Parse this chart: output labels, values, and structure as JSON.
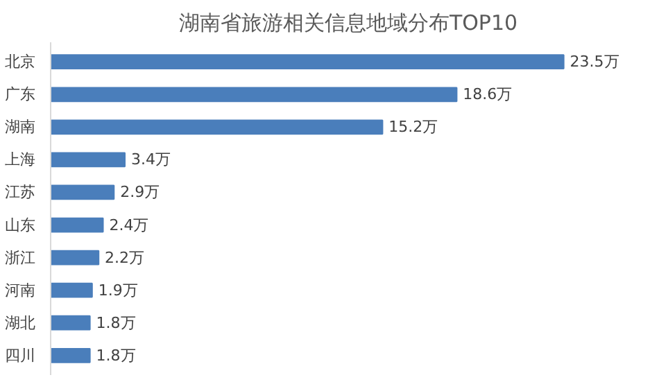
{
  "chart_data": {
    "type": "bar",
    "orientation": "horizontal",
    "title": "湖南省旅游相关信息地域分布TOP10",
    "categories": [
      "北京",
      "广东",
      "湖南",
      "上海",
      "江苏",
      "山东",
      "浙江",
      "河南",
      "湖北",
      "四川"
    ],
    "values": [
      23.5,
      18.6,
      15.2,
      3.4,
      2.9,
      2.4,
      2.2,
      1.9,
      1.8,
      1.8
    ],
    "value_labels": [
      "23.5万",
      "18.6万",
      "15.2万",
      "3.4万",
      "2.9万",
      "2.4万",
      "2.2万",
      "1.9万",
      "1.8万",
      "1.8万"
    ],
    "color": "#4a7ebb"
  }
}
